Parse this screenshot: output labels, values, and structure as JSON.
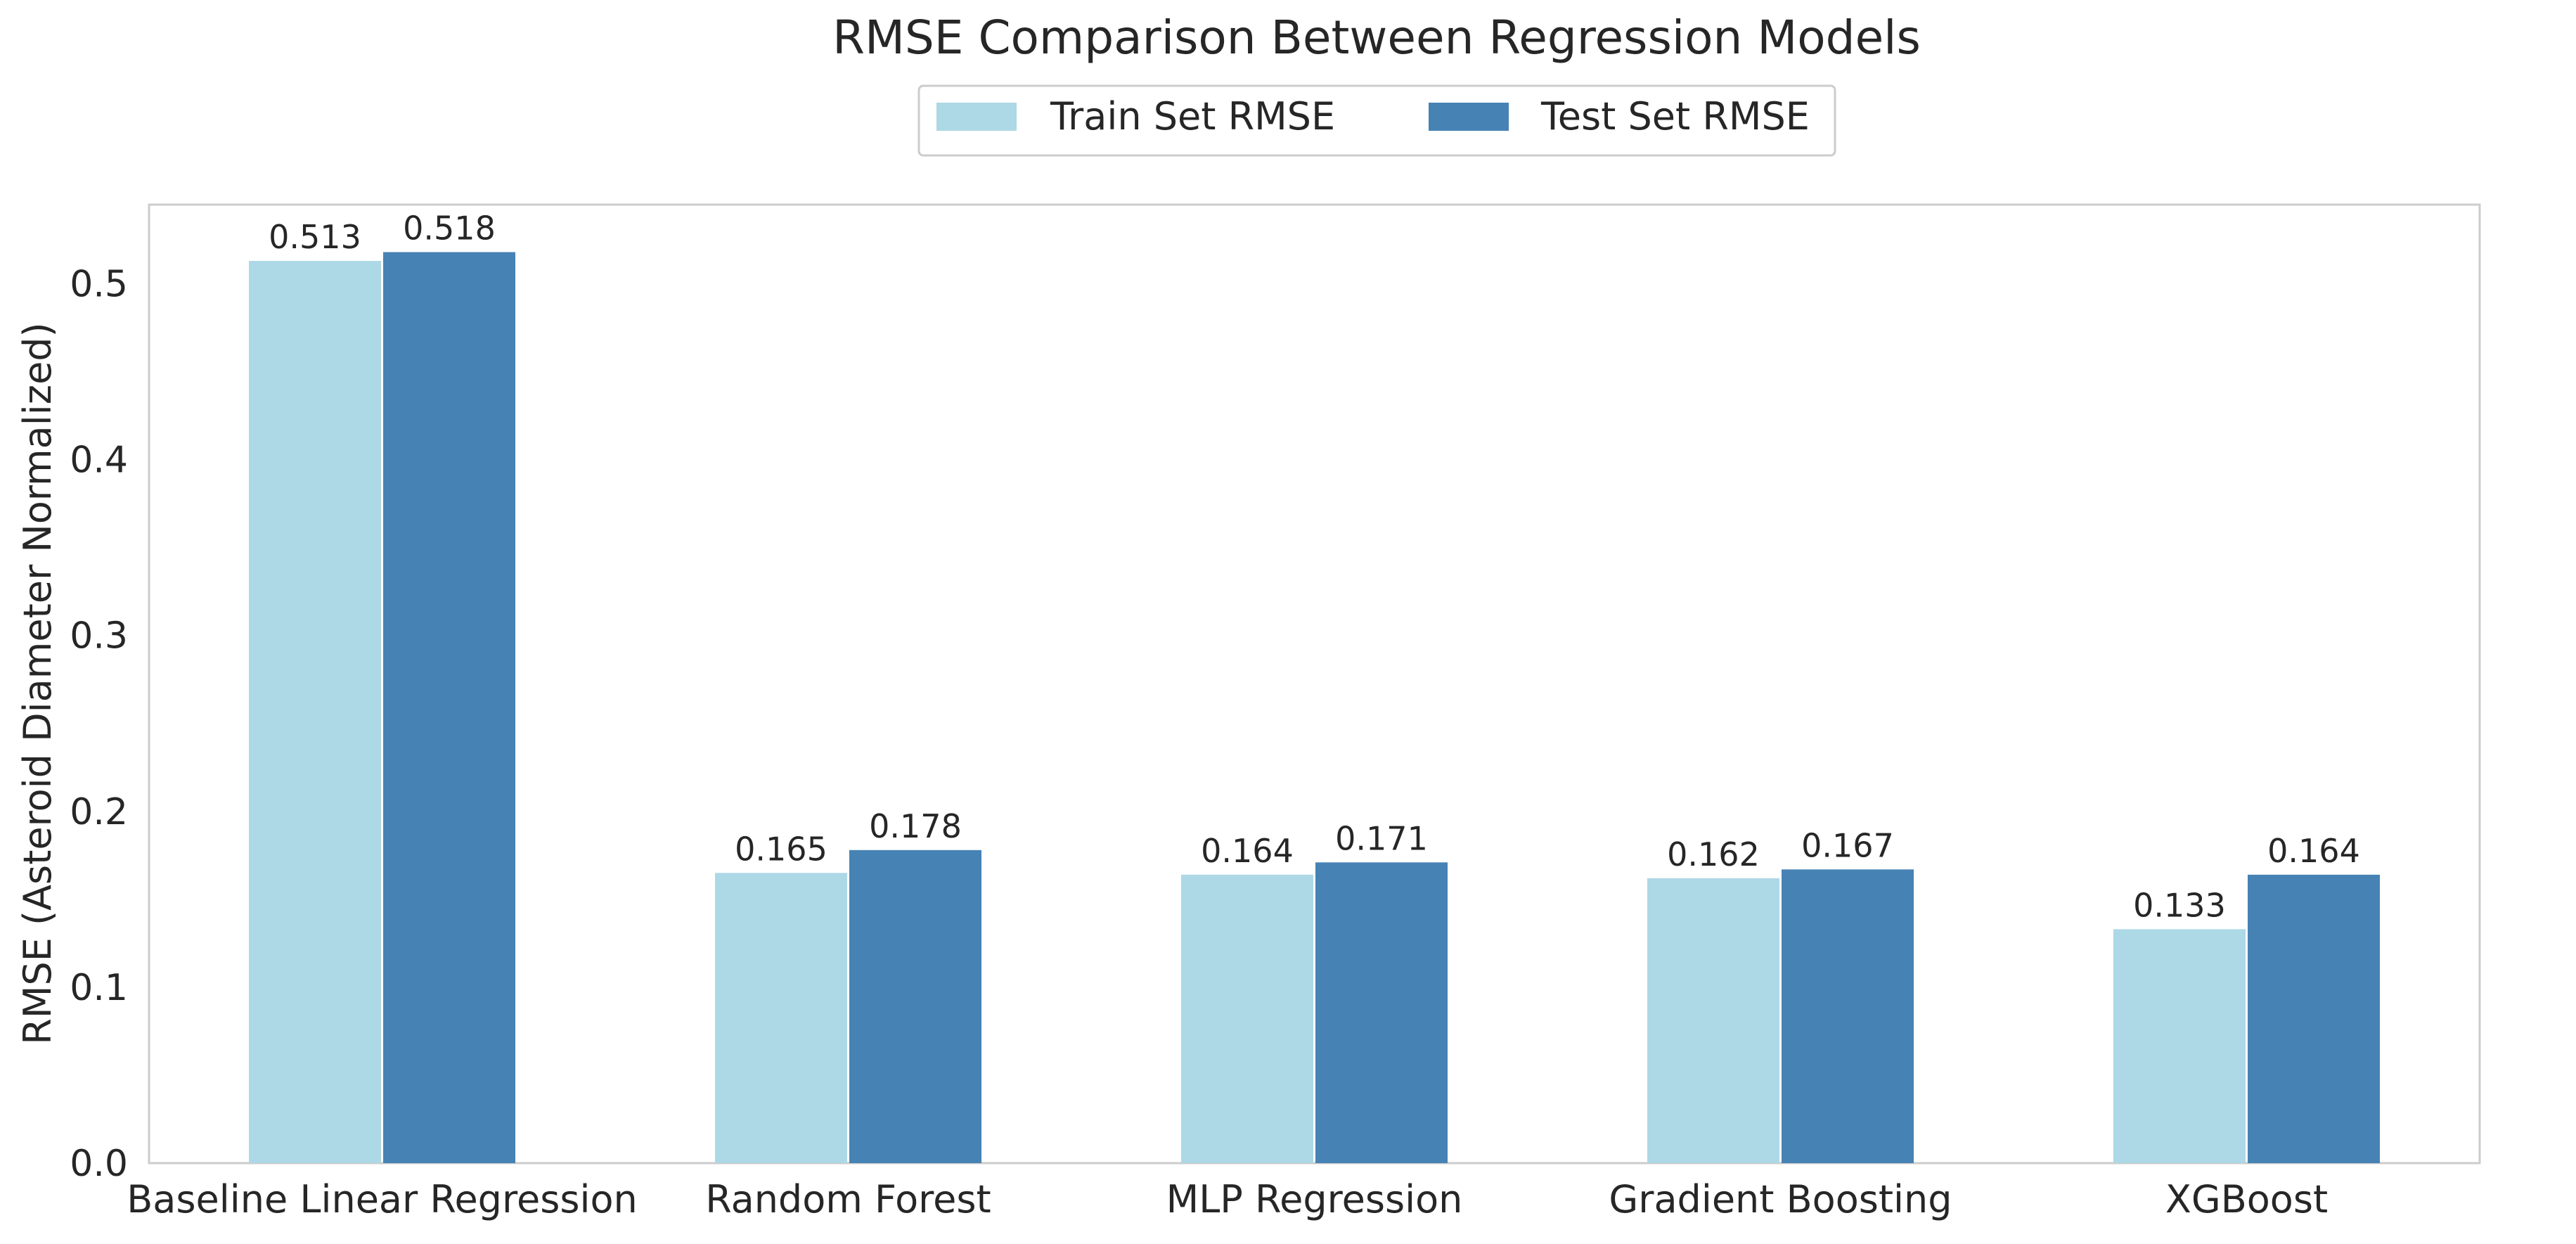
{
  "chart_data": {
    "type": "bar",
    "title": "RMSE Comparison Between Regression Models",
    "xlabel": "",
    "ylabel": "RMSE (Asteroid Diameter Normalized)",
    "categories": [
      "Baseline Linear Regression",
      "Random Forest",
      "MLP Regression",
      "Gradient Boosting",
      "XGBoost"
    ],
    "series": [
      {
        "name": "Train Set RMSE",
        "values": [
          0.513,
          0.165,
          0.164,
          0.162,
          0.133
        ],
        "labels": [
          "0.513",
          "0.165",
          "0.164",
          "0.162",
          "0.133"
        ],
        "color": "#add8e6"
      },
      {
        "name": "Test Set RMSE",
        "values": [
          0.518,
          0.178,
          0.171,
          0.167,
          0.164
        ],
        "labels": [
          "0.518",
          "0.178",
          "0.171",
          "0.167",
          "0.164"
        ],
        "color": "#4682b4"
      }
    ],
    "ylim": [
      0,
      0.545
    ],
    "yticks": [
      "0.0",
      "0.1",
      "0.2",
      "0.3",
      "0.4",
      "0.5"
    ],
    "grid": false,
    "legend_position": "top-center"
  }
}
